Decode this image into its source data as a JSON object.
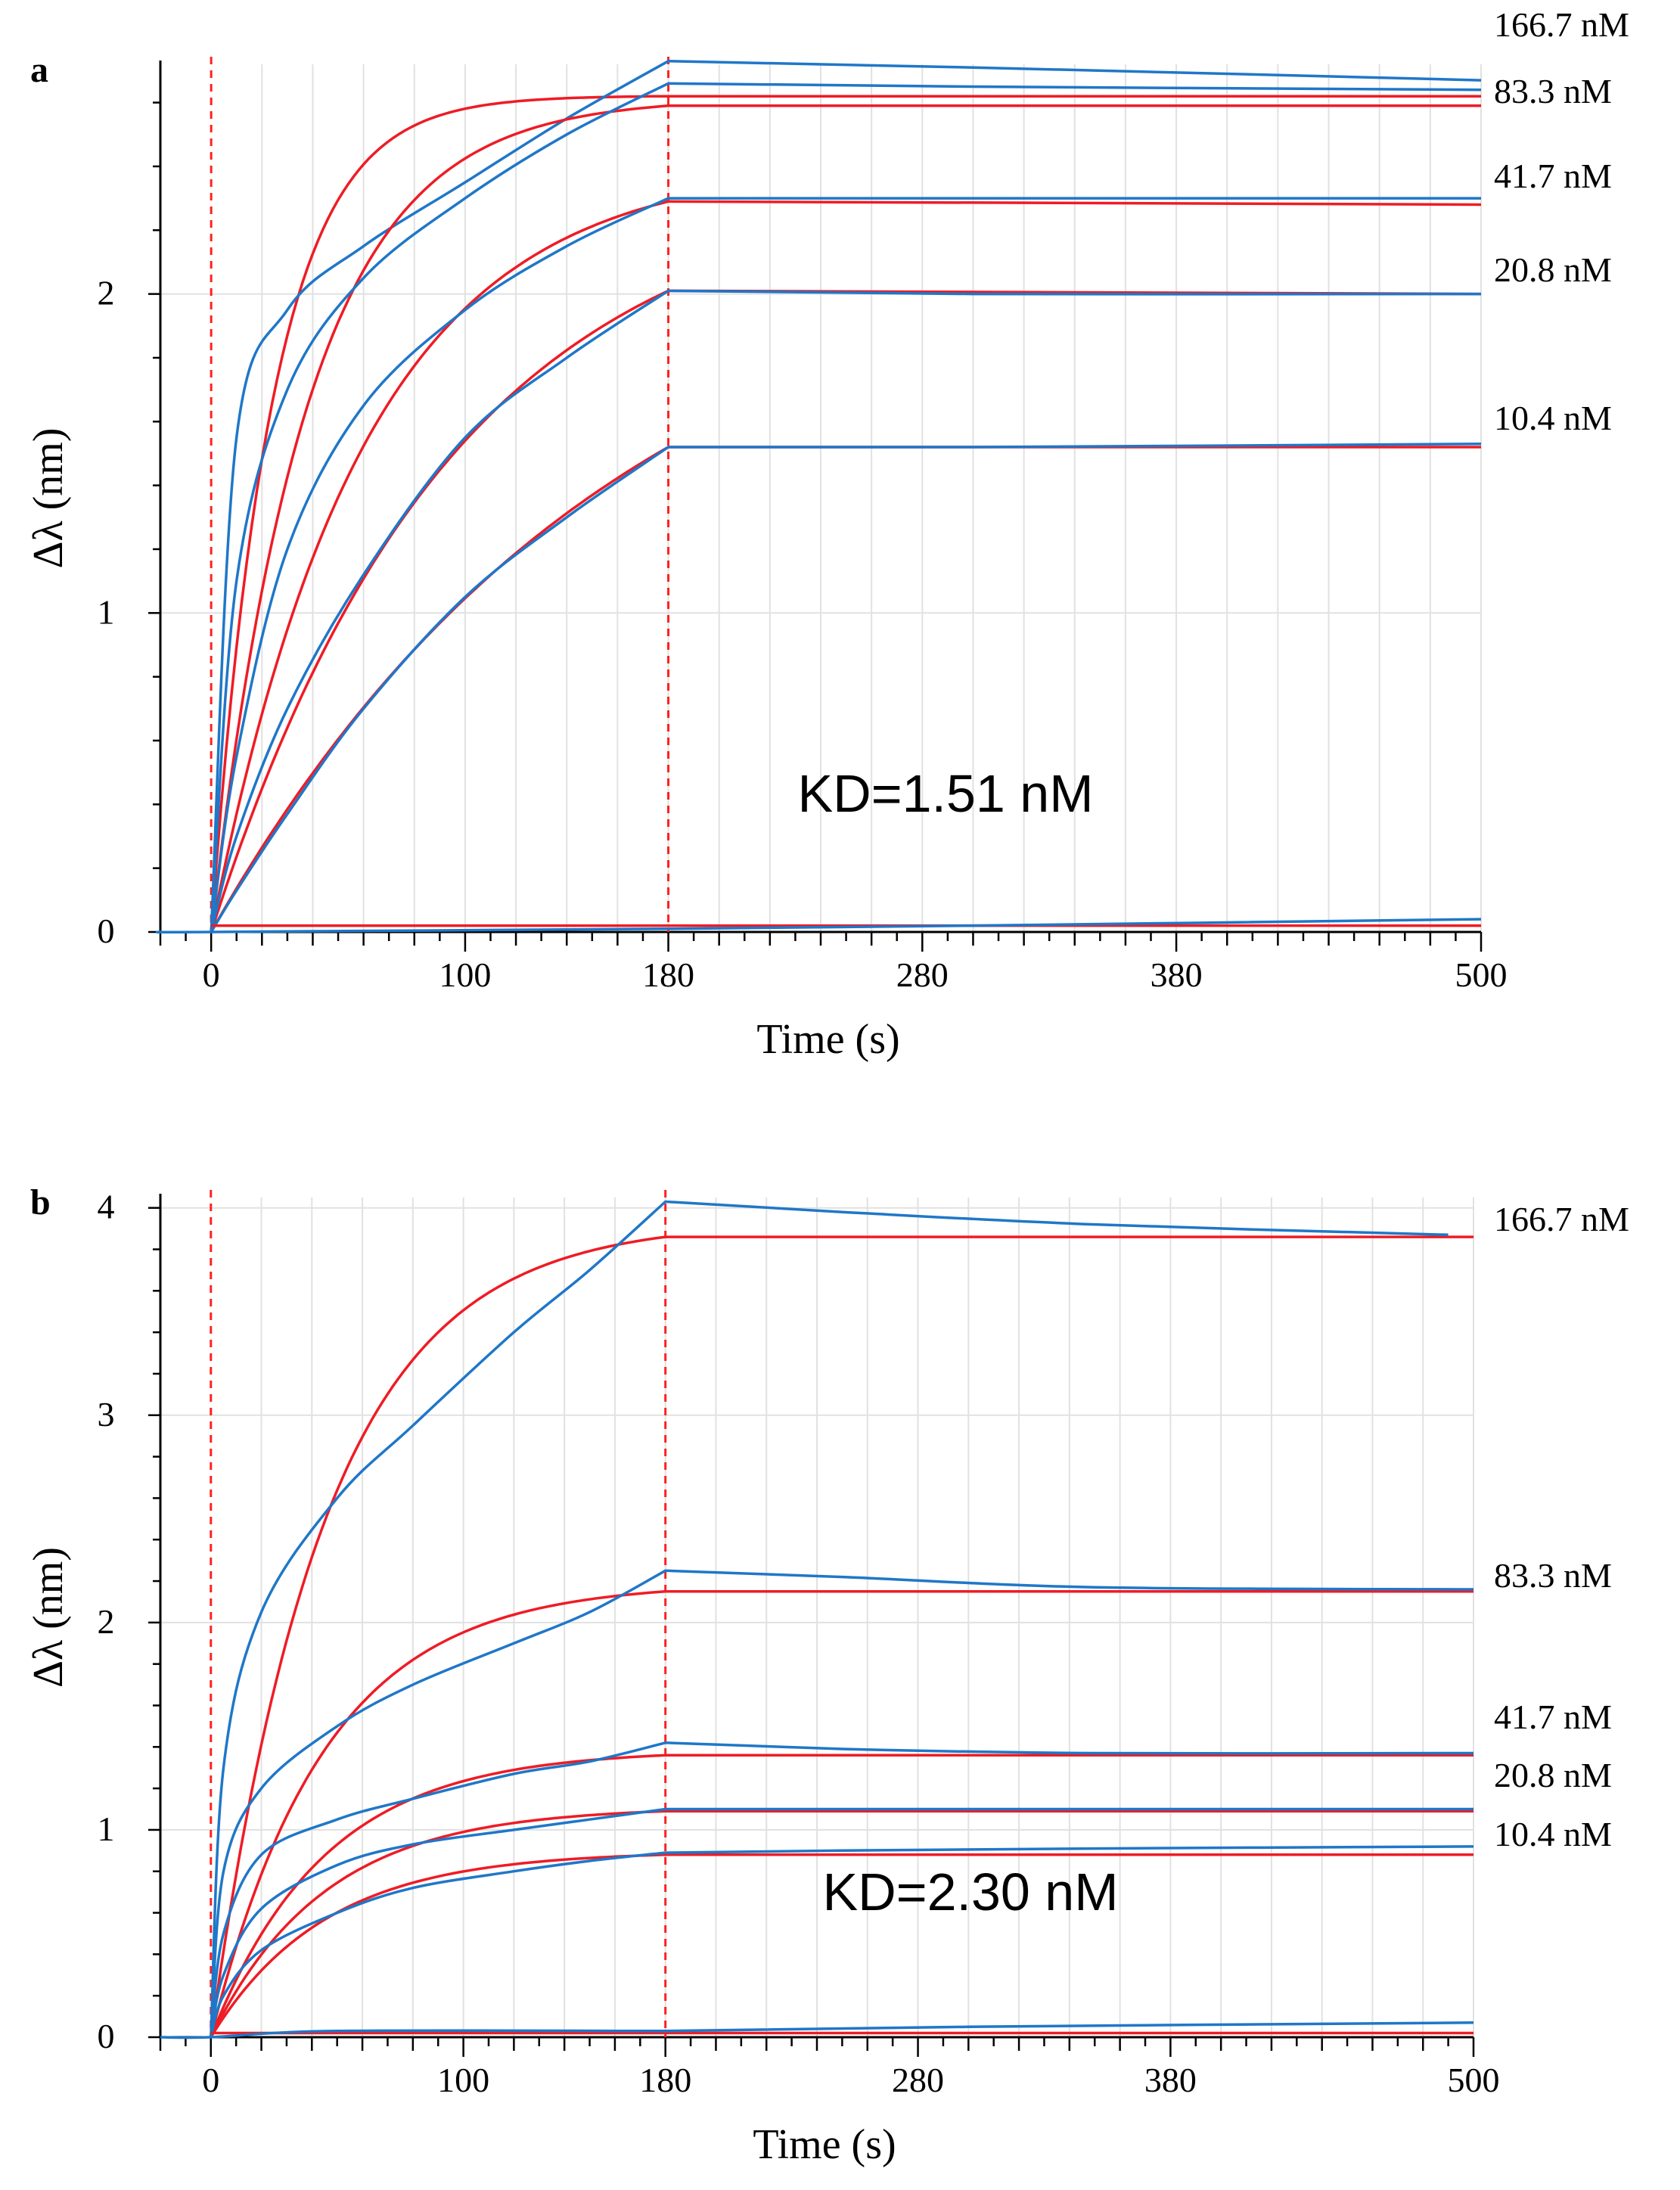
{
  "figure": {
    "colors": {
      "data": "#1f77c8",
      "fit": "#ee1c25",
      "grid": "#e1e1e1",
      "marker": "#ff2020"
    }
  },
  "chart_data": [
    {
      "panel": "a",
      "type": "line",
      "xlabel": "Time (s)",
      "ylabel": "Δλ (nm)",
      "xlim": [
        -20,
        500
      ],
      "ylim": [
        0,
        2.72
      ],
      "xticks": [
        0,
        100,
        180,
        280,
        380,
        500
      ],
      "yticks": [
        0,
        1,
        2
      ],
      "markers_x": [
        0,
        180
      ],
      "association_end": 180,
      "annotation": "KD=1.51 nM",
      "series": [
        {
          "name": "166.7 nM",
          "x": [
            0,
            10,
            30,
            60,
            100,
            140,
            180,
            300,
            500
          ],
          "data": [
            0,
            1.55,
            1.95,
            2.15,
            2.35,
            2.55,
            2.73,
            2.71,
            2.67
          ],
          "fit_peak": 2.62,
          "fit_tau": 24,
          "fit_end": 2.62
        },
        {
          "name": "83.3 nM",
          "x": [
            0,
            10,
            30,
            60,
            100,
            140,
            180,
            300,
            500
          ],
          "data": [
            0,
            1.1,
            1.7,
            2.05,
            2.3,
            2.5,
            2.66,
            2.65,
            2.64
          ],
          "fit_peak": 2.59,
          "fit_tau": 38,
          "fit_end": 2.59
        },
        {
          "name": "41.7 nM",
          "x": [
            0,
            10,
            30,
            60,
            100,
            140,
            180,
            300,
            500
          ],
          "data": [
            0,
            0.55,
            1.2,
            1.65,
            1.95,
            2.15,
            2.3,
            2.3,
            2.3
          ],
          "fit_peak": 2.29,
          "fit_tau": 60,
          "fit_end": 2.28
        },
        {
          "name": "20.8 nM",
          "x": [
            0,
            10,
            30,
            60,
            100,
            140,
            180,
            300,
            500
          ],
          "data": [
            0,
            0.3,
            0.7,
            1.12,
            1.55,
            1.8,
            2.01,
            2.0,
            2.0
          ],
          "fit_peak": 2.01,
          "fit_tau": 95,
          "fit_end": 2.0
        },
        {
          "name": "10.4 nM",
          "x": [
            0,
            10,
            30,
            60,
            100,
            140,
            180,
            300,
            500
          ],
          "data": [
            0,
            0.13,
            0.37,
            0.7,
            1.05,
            1.3,
            1.52,
            1.52,
            1.53
          ],
          "fit_peak": 1.52,
          "fit_tau": 160,
          "fit_end": 1.52
        },
        {
          "name": "baseline",
          "x": [
            -20,
            0,
            180,
            300,
            500
          ],
          "data": [
            0,
            0,
            0.01,
            0.02,
            0.04
          ]
        }
      ]
    },
    {
      "panel": "b",
      "type": "line",
      "xlabel": "Time (s)",
      "ylabel": "Δλ (nm)",
      "xlim": [
        -20,
        500
      ],
      "ylim": [
        0,
        4.05
      ],
      "xticks": [
        0,
        100,
        180,
        280,
        380,
        500
      ],
      "yticks": [
        0,
        1,
        2,
        3,
        4
      ],
      "markers_x": [
        0,
        180
      ],
      "association_end": 180,
      "annotation": "KD=2.30 nM",
      "series": [
        {
          "name": "166.7 nM",
          "x": [
            0,
            5,
            20,
            50,
            80,
            120,
            150,
            180,
            250,
            350,
            490
          ],
          "data": [
            0,
            1.3,
            2.05,
            2.6,
            2.95,
            3.4,
            3.7,
            4.03,
            3.98,
            3.92,
            3.87
          ],
          "fit_peak": 3.86,
          "fit_tau": 45,
          "fit_end": 3.86
        },
        {
          "name": "83.3 nM",
          "x": [
            0,
            5,
            20,
            50,
            80,
            120,
            150,
            180,
            250,
            350,
            500
          ],
          "data": [
            0,
            0.8,
            1.2,
            1.5,
            1.7,
            1.9,
            2.05,
            2.25,
            2.22,
            2.17,
            2.16
          ],
          "fit_peak": 2.15,
          "fit_tau": 45,
          "fit_end": 2.15
        },
        {
          "name": "41.7 nM",
          "x": [
            0,
            5,
            20,
            50,
            80,
            120,
            150,
            180,
            250,
            350,
            500
          ],
          "data": [
            0,
            0.5,
            0.88,
            1.05,
            1.15,
            1.27,
            1.33,
            1.42,
            1.39,
            1.37,
            1.37
          ],
          "fit_peak": 1.36,
          "fit_tau": 45,
          "fit_end": 1.36
        },
        {
          "name": "20.8 nM",
          "x": [
            0,
            5,
            20,
            50,
            80,
            120,
            150,
            180,
            250,
            350,
            500
          ],
          "data": [
            0,
            0.3,
            0.62,
            0.83,
            0.93,
            1.0,
            1.05,
            1.1,
            1.1,
            1.1,
            1.1
          ],
          "fit_peak": 1.09,
          "fit_tau": 45,
          "fit_end": 1.09
        },
        {
          "name": "10.4 nM",
          "x": [
            0,
            5,
            20,
            50,
            80,
            120,
            150,
            180,
            250,
            350,
            500
          ],
          "data": [
            0,
            0.2,
            0.42,
            0.6,
            0.72,
            0.8,
            0.85,
            0.89,
            0.9,
            0.91,
            0.92
          ],
          "fit_peak": 0.88,
          "fit_tau": 45,
          "fit_end": 0.88
        },
        {
          "name": "baseline",
          "x": [
            -20,
            0,
            50,
            180,
            300,
            500
          ],
          "data": [
            0,
            0,
            0.03,
            0.03,
            0.05,
            0.07
          ]
        }
      ]
    }
  ]
}
